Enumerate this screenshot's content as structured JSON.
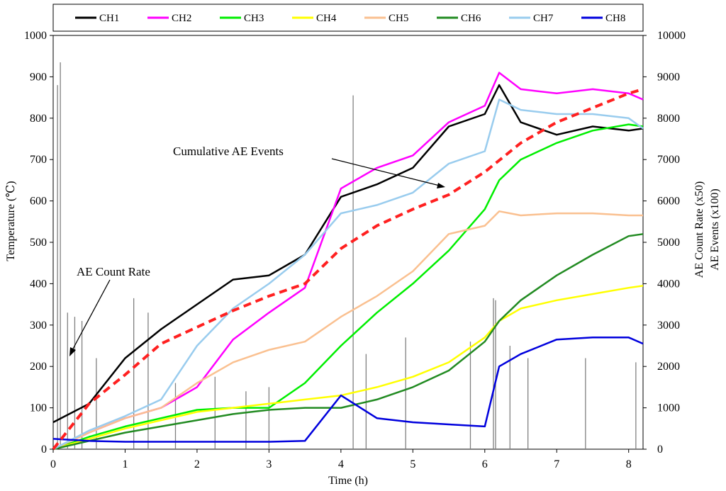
{
  "chart_data": {
    "type": "line",
    "x": [
      0,
      0.5,
      1,
      1.5,
      2,
      2.5,
      3,
      3.5,
      4,
      4.5,
      5,
      5.5,
      6,
      6.2,
      6.5,
      7,
      7.5,
      8,
      8.2
    ],
    "xlabel": "Time (h)",
    "xlim": [
      0,
      8.2
    ],
    "xticks": [
      "0",
      "1",
      "2",
      "3",
      "4",
      "5",
      "6",
      "7",
      "8"
    ],
    "ylabel_left": "Temperature (℃)",
    "ylim_left": [
      0,
      1000
    ],
    "yticks_left": [
      "0",
      "100",
      "200",
      "300",
      "400",
      "500",
      "600",
      "700",
      "800",
      "900",
      "1000"
    ],
    "ylabel_right_1": "AE Count Rate (x50)",
    "ylabel_right_2": "AE Events (x100)",
    "ylim_right": [
      0,
      10000
    ],
    "yticks_right": [
      "0",
      "1000",
      "2000",
      "3000",
      "4000",
      "5000",
      "6000",
      "7000",
      "8000",
      "9000",
      "10000"
    ],
    "series": [
      {
        "name": "CH1",
        "color": "#000000",
        "values": [
          65,
          110,
          220,
          290,
          350,
          410,
          420,
          470,
          610,
          640,
          680,
          780,
          810,
          880,
          790,
          760,
          780,
          770,
          775
        ]
      },
      {
        "name": "CH2",
        "color": "#ff00ff",
        "values": [
          0,
          40,
          75,
          100,
          150,
          265,
          330,
          390,
          630,
          680,
          710,
          790,
          830,
          910,
          870,
          860,
          870,
          860,
          845
        ]
      },
      {
        "name": "CH3",
        "color": "#00ee00",
        "values": [
          0,
          30,
          55,
          75,
          95,
          100,
          100,
          160,
          250,
          330,
          400,
          480,
          580,
          650,
          700,
          740,
          770,
          785,
          780
        ]
      },
      {
        "name": "CH4",
        "color": "#ffff00",
        "values": [
          0,
          25,
          50,
          70,
          90,
          100,
          110,
          120,
          130,
          150,
          175,
          210,
          270,
          310,
          340,
          360,
          375,
          390,
          395
        ]
      },
      {
        "name": "CH5",
        "color": "#fac090",
        "values": [
          0,
          40,
          75,
          100,
          160,
          210,
          240,
          260,
          320,
          370,
          430,
          520,
          540,
          575,
          565,
          570,
          570,
          565,
          565
        ]
      },
      {
        "name": "CH6",
        "color": "#228b22",
        "values": [
          0,
          20,
          40,
          55,
          70,
          85,
          95,
          100,
          100,
          120,
          150,
          190,
          260,
          310,
          360,
          420,
          470,
          515,
          520
        ]
      },
      {
        "name": "CH7",
        "color": "#99ccee",
        "values": [
          0,
          45,
          80,
          120,
          250,
          340,
          400,
          470,
          570,
          590,
          620,
          690,
          720,
          845,
          820,
          810,
          810,
          800,
          775
        ]
      },
      {
        "name": "CH8",
        "color": "#0000dd",
        "values": [
          25,
          20,
          18,
          18,
          18,
          18,
          18,
          20,
          130,
          75,
          65,
          60,
          55,
          200,
          230,
          265,
          270,
          270,
          255
        ]
      }
    ],
    "cumulative_ae_events": {
      "name": "Cumulative AE Events",
      "color": "#ff2020",
      "x": [
        0,
        0.5,
        1,
        1.5,
        2,
        2.5,
        3,
        3.5,
        4,
        4.5,
        5,
        5.5,
        6,
        6.5,
        7,
        7.5,
        8,
        8.2
      ],
      "values": [
        0,
        1100,
        1800,
        2550,
        2950,
        3350,
        3700,
        4000,
        4850,
        5400,
        5800,
        6150,
        6700,
        7400,
        7900,
        8250,
        8600,
        8700
      ]
    },
    "ae_count_rate": {
      "name": "AE Count Rate",
      "color": "#808080",
      "x": [
        0.06,
        0.1,
        0.2,
        0.3,
        0.4,
        0.6,
        1.12,
        1.32,
        1.7,
        2.25,
        2.68,
        3.0,
        4.17,
        4.35,
        4.9,
        5.8,
        6.12,
        6.15,
        6.35,
        6.6,
        7.4,
        8.1
      ],
      "values": [
        8800,
        9350,
        3300,
        3200,
        3100,
        2200,
        3650,
        3300,
        1600,
        1750,
        1400,
        1500,
        8550,
        2300,
        2700,
        2600,
        3650,
        3600,
        2500,
        2200,
        2200,
        2100
      ]
    },
    "annotations": [
      {
        "text": "AE Count Rate",
        "x": 0.3,
        "y": 220
      },
      {
        "text": "Cumulative AE Events",
        "x": 5.35,
        "y": 640
      }
    ]
  }
}
